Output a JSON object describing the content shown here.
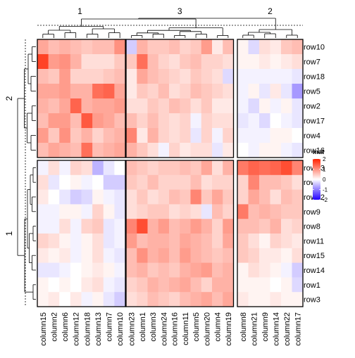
{
  "chart_data": {
    "type": "heatmap",
    "title": "",
    "legend": {
      "title": "mat",
      "ticks": [
        2,
        1,
        0,
        -1,
        -2
      ],
      "tick_labels": [
        "2",
        "1",
        "0",
        "-1",
        "-2"
      ],
      "colors": [
        "#ff2200",
        "#ffffff",
        "#2200ff"
      ],
      "placement": "right"
    },
    "column_splits": [
      {
        "label": "1",
        "columns": [
          "column15",
          "column2",
          "column6",
          "column12",
          "column18",
          "column13",
          "column7",
          "column10"
        ]
      },
      {
        "label": "3",
        "columns": [
          "column23",
          "column1",
          "column3",
          "column24",
          "column16",
          "column11",
          "column5",
          "column20",
          "column4",
          "column19"
        ]
      },
      {
        "label": "2",
        "columns": [
          "column8",
          "column21",
          "column9",
          "column14",
          "column22",
          "column17"
        ]
      }
    ],
    "row_splits": [
      {
        "label": "2",
        "rows": [
          "row10",
          "row7",
          "row18",
          "row5",
          "row2",
          "row17",
          "row4",
          "row16"
        ]
      },
      {
        "label": "1",
        "rows": [
          "row13",
          "row6",
          "row12",
          "row9",
          "row8",
          "row11",
          "row15",
          "row14",
          "row1",
          "row3"
        ]
      }
    ],
    "values": [
      [
        0.8,
        0.6,
        0.7,
        0.6,
        0.5,
        0.6,
        0.6,
        1.0,
        -0.4,
        0.7,
        0.5,
        0.5,
        0.6,
        0.4,
        0.5,
        0.9,
        0.2,
        0.6,
        0.1,
        -0.3,
        0.3,
        0.2,
        0.5,
        0.6
      ],
      [
        1.7,
        0.9,
        1.0,
        0.7,
        0.3,
        0.3,
        0.3,
        0.5,
        0.5,
        1.3,
        0.6,
        0.4,
        0.3,
        0.5,
        0.6,
        0.4,
        0.4,
        0.3,
        0.1,
        0.1,
        0.2,
        0.1,
        0.2,
        0.3
      ],
      [
        0.6,
        0.5,
        0.9,
        0.4,
        0.4,
        0.4,
        0.5,
        0.6,
        0.2,
        0.8,
        0.6,
        0.5,
        0.4,
        0.3,
        0.5,
        0.4,
        0.3,
        -0.3,
        -0.1,
        -0.1,
        -0.1,
        -0.1,
        -0.1,
        -0.2
      ],
      [
        0.8,
        0.8,
        0.9,
        0.7,
        0.7,
        1.3,
        1.4,
        0.8,
        0.2,
        0.5,
        0.4,
        0.6,
        0.3,
        0.4,
        0.6,
        0.5,
        0.4,
        0.3,
        -0.1,
        0.1,
        -0.2,
        0.2,
        -0.2,
        -0.8
      ],
      [
        0.7,
        0.6,
        0.8,
        1.4,
        0.7,
        0.8,
        0.8,
        0.9,
        0.3,
        0.3,
        0.5,
        0.4,
        0.6,
        0.5,
        0.3,
        0.5,
        0.2,
        0.2,
        -0.1,
        -0.3,
        0.1,
        -0.1,
        0.1,
        -0.2
      ],
      [
        0.6,
        0.9,
        0.9,
        0.6,
        1.5,
        0.9,
        0.8,
        0.6,
        0.6,
        0.4,
        0.6,
        0.4,
        0.3,
        0.4,
        -0.1,
        0.4,
        0.3,
        0.3,
        -0.2,
        -0.1,
        -0.3,
        0.0,
        -0.1,
        -0.2
      ],
      [
        0.9,
        0.5,
        1.0,
        0.5,
        0.7,
        0.4,
        0.6,
        0.7,
        1.1,
        0.2,
        0.7,
        0.4,
        0.3,
        0.4,
        -0.2,
        0.4,
        -0.1,
        0.4,
        -0.1,
        -0.1,
        -0.1,
        0.1,
        0.1,
        0.0
      ],
      [
        0.6,
        0.8,
        0.7,
        0.6,
        1.3,
        0.6,
        0.7,
        0.8,
        0.7,
        0.5,
        0.3,
        -0.1,
        0.4,
        0.2,
        0.3,
        0.3,
        -0.2,
        0.2,
        0.0,
        -0.1,
        0.1,
        0.1,
        -0.1,
        -0.2
      ],
      [
        -0.1,
        0.3,
        -0.1,
        0.4,
        0.3,
        -0.6,
        -0.2,
        0.0,
        0.6,
        0.5,
        0.4,
        0.5,
        0.5,
        0.6,
        0.5,
        0.8,
        0.3,
        0.7,
        1.2,
        1.4,
        1.3,
        1.4,
        1.6,
        1.1
      ],
      [
        0.3,
        -0.2,
        0.0,
        0.1,
        -0.1,
        0.0,
        -0.4,
        -0.4,
        0.5,
        0.4,
        0.6,
        0.4,
        0.4,
        0.4,
        0.6,
        0.3,
        0.4,
        0.4,
        0.4,
        1.1,
        0.6,
        0.6,
        0.5,
        0.3
      ],
      [
        0.2,
        0.0,
        -0.2,
        -0.4,
        -0.3,
        0.1,
        -0.1,
        -0.2,
        0.3,
        0.5,
        0.3,
        0.4,
        0.6,
        0.5,
        1.1,
        0.5,
        0.8,
        0.5,
        0.4,
        0.8,
        0.6,
        0.3,
        0.6,
        0.5
      ],
      [
        -0.1,
        -0.1,
        0.1,
        0.1,
        -0.1,
        0.4,
        0.1,
        -0.2,
        0.3,
        0.4,
        0.5,
        0.5,
        0.3,
        0.4,
        0.3,
        -0.2,
        0.6,
        0.4,
        1.2,
        0.6,
        0.7,
        0.6,
        0.5,
        0.5
      ],
      [
        -0.1,
        -0.1,
        0.3,
        -0.1,
        0.4,
        0.5,
        -0.2,
        -0.1,
        1.1,
        1.6,
        0.7,
        0.9,
        0.6,
        0.7,
        0.9,
        0.7,
        0.4,
        0.9,
        0.6,
        0.6,
        0.5,
        0.7,
        0.3,
        0.4
      ],
      [
        0.4,
        0.3,
        0.1,
        -0.1,
        0.1,
        0.3,
        -0.2,
        -0.1,
        0.9,
        0.6,
        0.7,
        0.7,
        0.6,
        0.8,
        0.7,
        0.6,
        0.4,
        0.8,
        0.5,
        0.3,
        0.1,
        0.4,
        0.3,
        0.2
      ],
      [
        0.2,
        0.1,
        0.2,
        -0.1,
        0.1,
        0.3,
        -0.1,
        -0.2,
        0.6,
        1.0,
        0.7,
        0.8,
        0.6,
        0.9,
        0.7,
        0.6,
        0.5,
        0.6,
        0.5,
        0.4,
        0.2,
        0.2,
        0.1,
        0.3
      ],
      [
        -0.2,
        -0.2,
        -0.1,
        0.0,
        0.1,
        0.2,
        0.1,
        -0.1,
        0.6,
        0.7,
        0.5,
        0.6,
        0.5,
        0.7,
        0.8,
        0.9,
        0.6,
        0.7,
        0.1,
        0.3,
        0.2,
        0.1,
        -0.1,
        -0.4
      ],
      [
        0.1,
        0.0,
        0.1,
        0.0,
        0.2,
        0.3,
        -0.1,
        -0.2,
        0.4,
        0.5,
        0.7,
        0.6,
        0.7,
        0.8,
        0.6,
        0.4,
        0.7,
        0.7,
        0.1,
        0.1,
        0.1,
        0.0,
        0.1,
        -0.3
      ],
      [
        0.1,
        0.2,
        0.0,
        0.2,
        -0.1,
        0.1,
        -0.2,
        -0.4,
        0.3,
        0.4,
        0.6,
        0.5,
        0.4,
        0.6,
        0.7,
        0.8,
        0.6,
        0.8,
        0.2,
        0.1,
        0.1,
        0.2,
        0.1,
        0.1
      ]
    ]
  }
}
